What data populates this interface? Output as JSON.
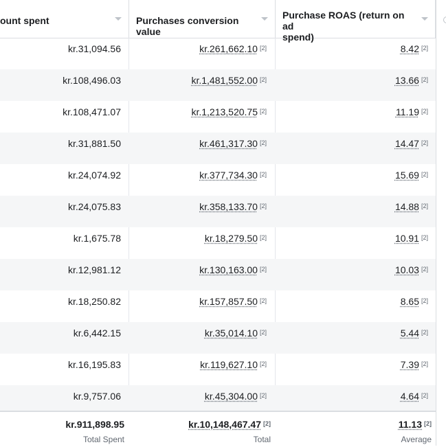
{
  "headers": {
    "amount_spent": "ount spent",
    "conversion_value": "Purchases conversion value",
    "roas_line1": "Purchase ROAS (return on ad",
    "roas_line2": "spend)"
  },
  "ref_marker": "[2]",
  "rows": [
    {
      "spent": "kr.31,094.56",
      "value": "kr.261,662.10",
      "roas": "8.42"
    },
    {
      "spent": "kr.108,496.03",
      "value": "kr.1,481,552.00",
      "roas": "13.66"
    },
    {
      "spent": "kr.108,471.07",
      "value": "kr.1,213,520.75",
      "roas": "11.19"
    },
    {
      "spent": "kr.31,881.50",
      "value": "kr.461,317.30",
      "roas": "14.47"
    },
    {
      "spent": "kr.24,074.92",
      "value": "kr.377,734.30",
      "roas": "15.69"
    },
    {
      "spent": "kr.24,075.83",
      "value": "kr.358,133.70",
      "roas": "14.88"
    },
    {
      "spent": "kr.1,675.78",
      "value": "kr.18,279.50",
      "roas": "10.91"
    },
    {
      "spent": "kr.12,981.12",
      "value": "kr.130,163.00",
      "roas": "10.03"
    },
    {
      "spent": "kr.18,250.82",
      "value": "kr.157,857.50",
      "roas": "8.65"
    },
    {
      "spent": "kr.6,442.15",
      "value": "kr.35,014.10",
      "roas": "5.44"
    },
    {
      "spent": "kr.16,195.83",
      "value": "kr.119,627.10",
      "roas": "7.39"
    },
    {
      "spent": "kr.9,757.06",
      "value": "kr.45,304.00",
      "roas": "4.64"
    }
  ],
  "totals": {
    "spent": "kr.911,898.95",
    "spent_label": "Total Spent",
    "value": "kr.10,148,467.47",
    "value_label": "Total",
    "roas": "11.13",
    "roas_label": "Average"
  },
  "icons": {
    "sort": "chevron-down-icon",
    "edge": "column-settings-icon"
  }
}
